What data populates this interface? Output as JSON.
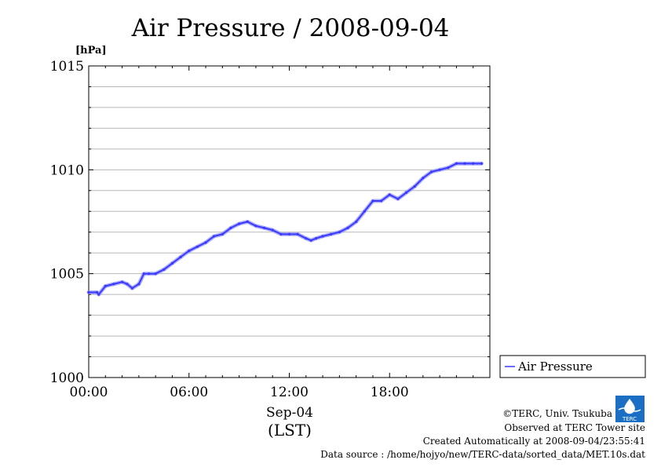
{
  "chart_data": {
    "type": "line",
    "title": "Air Pressure / 2008-09-04",
    "unit_label": "[hPa]",
    "xlabel_line1": "Sep-04",
    "xlabel_line2": "(LST)",
    "xlim": [
      0,
      24
    ],
    "ylim": [
      1000,
      1015
    ],
    "x_ticks": [
      {
        "value": 0,
        "label": "00:00"
      },
      {
        "value": 6,
        "label": "06:00"
      },
      {
        "value": 12,
        "label": "12:00"
      },
      {
        "value": 18,
        "label": "18:00"
      }
    ],
    "y_ticks": [
      {
        "value": 1000,
        "label": "1000"
      },
      {
        "value": 1005,
        "label": "1005"
      },
      {
        "value": 1010,
        "label": "1010"
      },
      {
        "value": 1015,
        "label": "1015"
      }
    ],
    "grid": true,
    "legend_position": "right",
    "series": [
      {
        "name": "Air Pressure",
        "color": "#3a3aff",
        "x": [
          0.0,
          0.5,
          0.6,
          1.0,
          1.5,
          2.0,
          2.3,
          2.6,
          3.0,
          3.3,
          3.6,
          4.0,
          4.5,
          5.0,
          5.5,
          6.0,
          6.5,
          7.0,
          7.5,
          8.0,
          8.5,
          9.0,
          9.5,
          10.0,
          10.5,
          11.0,
          11.5,
          12.0,
          12.5,
          13.0,
          13.3,
          13.6,
          14.0,
          14.5,
          15.0,
          15.5,
          16.0,
          16.5,
          17.0,
          17.5,
          18.0,
          18.5,
          19.0,
          19.5,
          20.0,
          20.5,
          21.0,
          21.5,
          22.0,
          22.5,
          23.0,
          23.5
        ],
        "y": [
          1004.1,
          1004.1,
          1004.0,
          1004.4,
          1004.5,
          1004.6,
          1004.5,
          1004.3,
          1004.5,
          1005.0,
          1005.0,
          1005.0,
          1005.2,
          1005.5,
          1005.8,
          1006.1,
          1006.3,
          1006.5,
          1006.8,
          1006.9,
          1007.2,
          1007.4,
          1007.5,
          1007.3,
          1007.2,
          1007.1,
          1006.9,
          1006.9,
          1006.9,
          1006.7,
          1006.6,
          1006.7,
          1006.8,
          1006.9,
          1007.0,
          1007.2,
          1007.5,
          1008.0,
          1008.5,
          1008.5,
          1008.8,
          1008.6,
          1008.9,
          1009.2,
          1009.6,
          1009.9,
          1010.0,
          1010.1,
          1010.3,
          1010.3,
          1010.3,
          1010.3
        ]
      }
    ]
  },
  "credits": {
    "copyright": "©TERC, Univ. Tsukuba",
    "observed": "Observed at TERC Tower site",
    "created": "Created Automatically at 2008-09-04/23:55:41",
    "source": "Data source : /home/hojyo/new/TERC-data/sorted_data/MET.10s.dat",
    "logo_text": "TERC"
  }
}
